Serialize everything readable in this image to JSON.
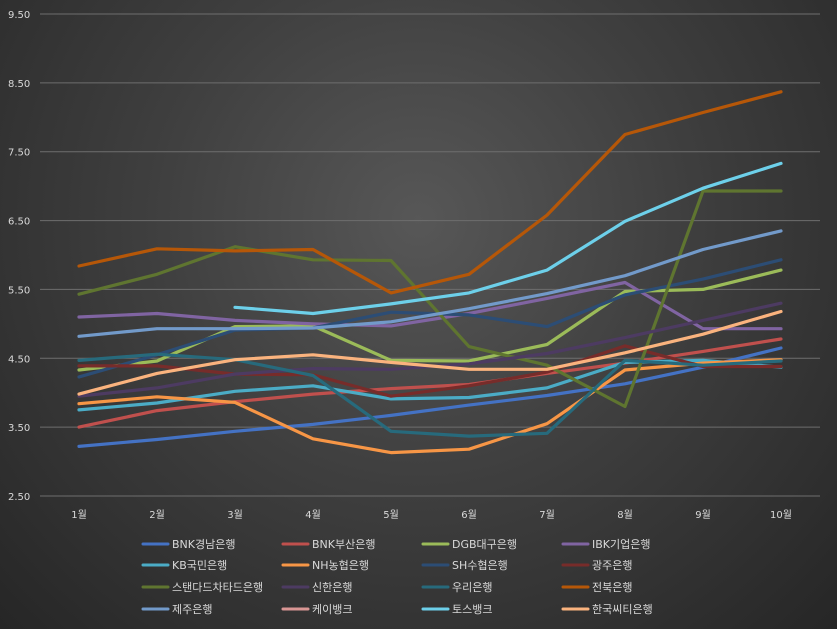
{
  "chart_data": {
    "type": "line",
    "categories": [
      "1월",
      "2월",
      "3월",
      "4월",
      "5월",
      "6월",
      "7월",
      "8월",
      "9월",
      "10월"
    ],
    "ylim": [
      2.5,
      9.5
    ],
    "yticks": [
      "2.50",
      "3.50",
      "4.50",
      "5.50",
      "6.50",
      "7.50",
      "8.50",
      "9.50"
    ],
    "ytick_values": [
      2.5,
      3.5,
      4.5,
      5.5,
      6.5,
      7.5,
      8.5,
      9.5
    ],
    "grid": true,
    "legend_position": "bottom",
    "series": [
      {
        "name": "BNK경남은행",
        "color": "#4472c4",
        "values": [
          3.22,
          3.32,
          3.44,
          3.54,
          3.67,
          3.82,
          3.96,
          4.13,
          4.37,
          4.65
        ]
      },
      {
        "name": "BNK부산은행",
        "color": "#c0504d",
        "values": [
          3.5,
          3.74,
          3.87,
          3.98,
          4.06,
          4.12,
          4.28,
          4.43,
          4.6,
          4.78
        ]
      },
      {
        "name": "DGB대구은행",
        "color": "#9bbb59",
        "values": [
          4.33,
          4.46,
          4.96,
          4.97,
          4.47,
          4.46,
          4.7,
          5.47,
          5.5,
          5.78
        ]
      },
      {
        "name": "IBK기업은행",
        "color": "#8064a2",
        "values": [
          5.1,
          5.15,
          5.05,
          5.0,
          4.97,
          5.15,
          5.37,
          5.6,
          4.93,
          4.93
        ]
      },
      {
        "name": "KB국민은행",
        "color": "#4bacc6",
        "values": [
          3.75,
          3.85,
          4.02,
          4.1,
          3.91,
          3.93,
          4.07,
          4.44,
          4.47,
          4.37
        ]
      },
      {
        "name": "NH농협은행",
        "color": "#f79646",
        "values": [
          3.84,
          3.94,
          3.86,
          3.33,
          3.13,
          3.18,
          3.55,
          4.33,
          4.43,
          4.48
        ]
      },
      {
        "name": "SH수협은행",
        "color": "#2c4d75",
        "values": [
          4.23,
          4.55,
          4.91,
          4.94,
          5.17,
          5.13,
          4.96,
          5.42,
          5.65,
          5.93
        ]
      },
      {
        "name": "광주은행",
        "color": "#772c2a",
        "values": [
          4.39,
          4.39,
          4.27,
          4.26,
          3.95,
          4.1,
          4.3,
          4.68,
          4.38,
          4.38
        ]
      },
      {
        "name": "스탠다드차타드은행",
        "color": "#5f7530",
        "values": [
          5.43,
          5.72,
          6.12,
          5.93,
          5.92,
          4.67,
          4.4,
          3.8,
          6.93,
          6.93
        ]
      },
      {
        "name": "신한은행",
        "color": "#4d3b62",
        "values": [
          3.95,
          4.07,
          4.27,
          4.35,
          4.34,
          4.42,
          4.57,
          4.8,
          5.05,
          5.3
        ]
      },
      {
        "name": "우리은행",
        "color": "#276a7c",
        "values": [
          4.47,
          4.56,
          4.48,
          4.25,
          3.44,
          3.37,
          3.41,
          4.47,
          4.4,
          4.46
        ]
      },
      {
        "name": "전북은행",
        "color": "#b65708",
        "values": [
          5.84,
          6.09,
          6.06,
          6.08,
          5.45,
          5.72,
          6.58,
          7.75,
          8.07,
          8.37
        ]
      },
      {
        "name": "제주은행",
        "color": "#729aca",
        "values": [
          4.82,
          4.93,
          4.93,
          4.94,
          5.03,
          5.22,
          5.44,
          5.7,
          6.08,
          6.35
        ]
      },
      {
        "name": "케이뱅크",
        "color": "#d99694",
        "values": [
          null,
          null,
          null,
          null,
          null,
          null,
          null,
          null,
          null,
          null
        ]
      },
      {
        "name": "토스뱅크",
        "color": "#6dd0ea",
        "values": [
          null,
          null,
          5.24,
          5.15,
          5.29,
          5.45,
          5.78,
          6.49,
          6.97,
          7.33
        ]
      },
      {
        "name": "한국씨티은행",
        "color": "#fab37e",
        "values": [
          3.98,
          4.28,
          4.48,
          4.55,
          4.44,
          4.34,
          4.34,
          4.58,
          4.85,
          5.18
        ]
      }
    ]
  }
}
